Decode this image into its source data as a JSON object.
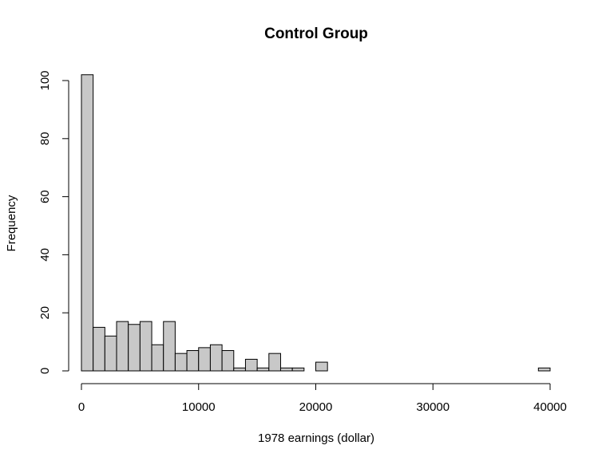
{
  "chart_data": {
    "type": "bar",
    "title": "Control Group",
    "xlabel": "1978 earnings (dollar)",
    "ylabel": "Frequency",
    "bin_width": 1000,
    "bin_start": 0,
    "values": [
      102,
      15,
      12,
      17,
      16,
      17,
      9,
      17,
      6,
      7,
      8,
      9,
      7,
      1,
      4,
      1,
      6,
      1,
      1,
      0,
      3,
      0,
      0,
      0,
      0,
      0,
      0,
      0,
      0,
      0,
      0,
      0,
      0,
      0,
      0,
      0,
      0,
      0,
      0,
      1
    ],
    "xlim": [
      0,
      40000
    ],
    "ylim": [
      0,
      102
    ],
    "x_ticks": [
      0,
      10000,
      20000,
      30000,
      40000
    ],
    "y_ticks": [
      0,
      20,
      40,
      60,
      80,
      100
    ],
    "bar_fill": "#c8c8c8",
    "bar_stroke": "#000000",
    "grid": false,
    "legend": "none"
  }
}
